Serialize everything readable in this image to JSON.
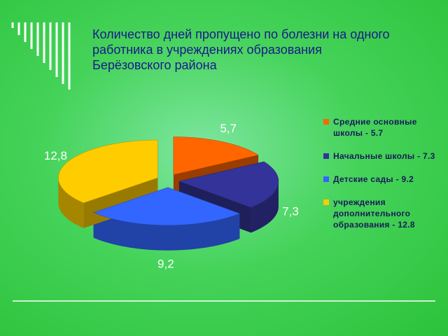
{
  "chart_data": {
    "type": "pie",
    "title": "Количество дней пропущено по болезни на одного работника в учреждениях образования Берёзовского района",
    "categories": [
      "Средние основные школы - 5.7",
      "Начальные школы - 7.3",
      "Детские сады - 9.2",
      "учреждения дополнительного образования - 12.8"
    ],
    "values": [
      5.7,
      7.3,
      9.2,
      12.8
    ],
    "value_labels": [
      "5,7",
      "7,3",
      "9,2",
      "12,8"
    ],
    "colors": [
      "#ff6600",
      "#333399",
      "#3366ff",
      "#ffcc00"
    ],
    "legend": "right"
  }
}
